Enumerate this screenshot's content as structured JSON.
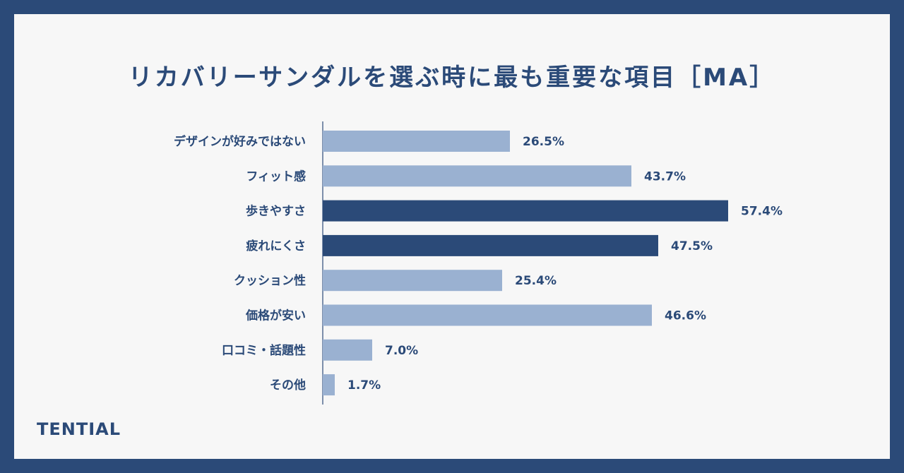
{
  "brand": "TENTIAL",
  "colors": {
    "border": "#2b4a78",
    "background": "#f7f7f7",
    "highlight_bar": "#2b4a78",
    "normal_bar": "#9ab1d1",
    "text": "#2b4a78"
  },
  "chart_data": {
    "type": "bar",
    "orientation": "horizontal",
    "title": "リカバリーサンダルを選ぶ時に最も重要な項目［MA］",
    "xlabel": "",
    "ylabel": "",
    "xlim": [
      0,
      60
    ],
    "grid": false,
    "categories": [
      "デザインが好みではない",
      "フィット感",
      "歩きやすさ",
      "疲れにくさ",
      "クッション性",
      "価格が安い",
      "口コミ・話題性",
      "その他"
    ],
    "values": [
      26.5,
      43.7,
      57.4,
      47.5,
      25.4,
      46.6,
      7.0,
      1.7
    ],
    "value_labels": [
      "26.5%",
      "43.7%",
      "57.4%",
      "47.5%",
      "25.4%",
      "46.6%",
      "7.0%",
      "1.7%"
    ],
    "highlighted": [
      false,
      false,
      true,
      true,
      false,
      false,
      false,
      false
    ]
  }
}
